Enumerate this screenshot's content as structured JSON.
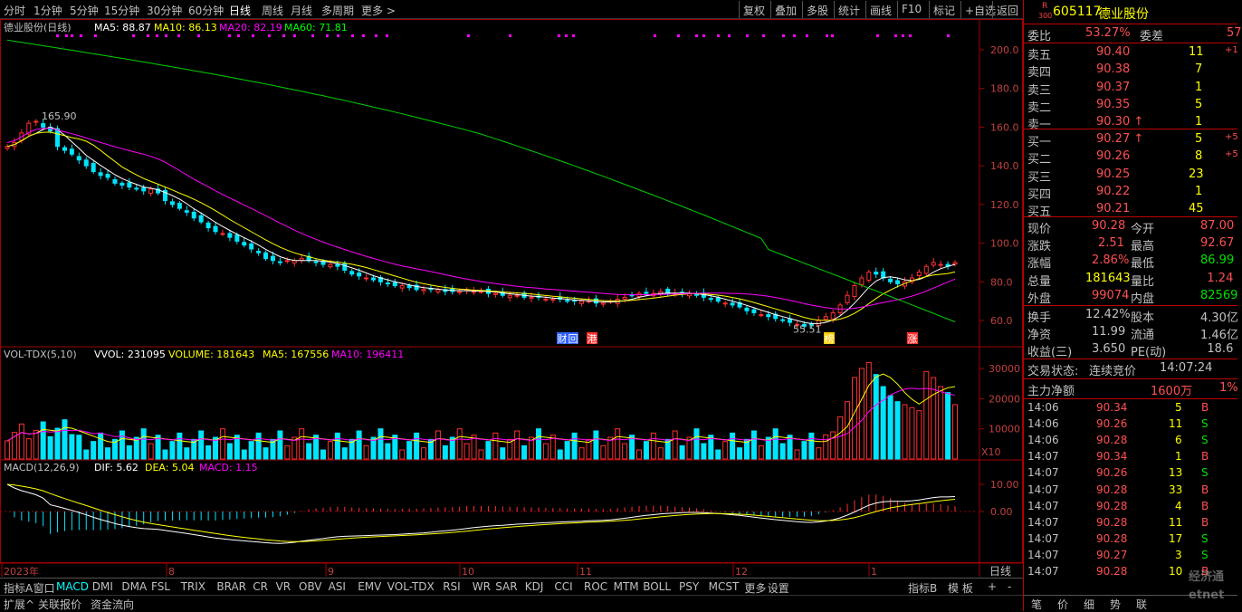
{
  "toolbar": {
    "periods": [
      "分时",
      "1分钟",
      "5分钟",
      "15分钟",
      "30分钟",
      "60分钟",
      "日线",
      "周线",
      "月线",
      "多周期",
      "更多 >"
    ],
    "active": "日线",
    "right": [
      "复权",
      "叠加",
      "多股",
      "统计",
      "画线",
      "F10",
      "标记",
      "+自选",
      "返回"
    ]
  },
  "main_panel": {
    "title": "德业股份(日线)",
    "ma5": "MA5: 88.87",
    "ma10": "MA10: 86.13",
    "ma20": "MA20: 82.19",
    "ma60": "MA60: 71.81",
    "high_label": "165.90",
    "low_label": "55.51",
    "y_ticks": [
      "200.0",
      "180.0",
      "160.0",
      "140.0",
      "120.0",
      "100.0",
      "80.0",
      "60.0"
    ],
    "markers": [
      "财",
      "回",
      "港",
      "榜",
      "涨"
    ]
  },
  "vol_panel": {
    "title": "VOL-TDX(5,10)",
    "vvol": "VVOL: 231095",
    "volume": "VOLUME: 181643",
    "ma5": "MA5: 167556",
    "ma10": "MA10: 196411",
    "y_ticks": [
      "30000",
      "20000",
      "10000"
    ],
    "unit": "X10"
  },
  "macd_panel": {
    "title": "MACD(12,26,9)",
    "dif": "DIF: 5.62",
    "dea": "DEA: 5.04",
    "macd": "MACD: 1.15",
    "y_ticks": [
      "10.00",
      "0.00"
    ]
  },
  "x_axis": {
    "labels": [
      "2023年",
      "8",
      "9",
      "10",
      "11",
      "12",
      "1"
    ],
    "period": "日线"
  },
  "indicator_tabs": [
    "指标A",
    "窗口",
    "MACD",
    "DMI",
    "DMA",
    "FSL",
    "TRIX",
    "BRAR",
    "CR",
    "VR",
    "OBV",
    "ASI",
    "EMV",
    "VOL-TDX",
    "RSI",
    "WR",
    "SAR",
    "KDJ",
    "CCI",
    "ROC",
    "MTM",
    "BOLL",
    "PSY",
    "MCST",
    "更多",
    "设置"
  ],
  "indicator_active": "MACD",
  "indicator_right": [
    "指标B",
    "模 板",
    "+",
    "-"
  ],
  "bottom_tabs": [
    "扩展^",
    "关联报价",
    "资金流向"
  ],
  "quote": {
    "badge_top": "R",
    "badge_bottom": "300",
    "code": "605117",
    "name": "德业股份",
    "wei_bi_label": "委比",
    "wei_bi": "53.27%",
    "wei_cha_label": "委差",
    "wei_cha": "57",
    "sell": [
      {
        "label": "卖五",
        "price": "90.40",
        "vol": "11",
        "chg": "+1"
      },
      {
        "label": "卖四",
        "price": "90.38",
        "vol": "7",
        "chg": ""
      },
      {
        "label": "卖三",
        "price": "90.37",
        "vol": "1",
        "chg": ""
      },
      {
        "label": "卖二",
        "price": "90.35",
        "vol": "5",
        "chg": ""
      },
      {
        "label": "卖一",
        "price": "90.30 ↑",
        "vol": "1",
        "chg": ""
      }
    ],
    "buy": [
      {
        "label": "买一",
        "price": "90.27 ↑",
        "vol": "5",
        "chg": "+5"
      },
      {
        "label": "买二",
        "price": "90.26",
        "vol": "8",
        "chg": "+5"
      },
      {
        "label": "买三",
        "price": "90.25",
        "vol": "23",
        "chg": ""
      },
      {
        "label": "买四",
        "price": "90.22",
        "vol": "1",
        "chg": ""
      },
      {
        "label": "买五",
        "price": "90.21",
        "vol": "45",
        "chg": ""
      }
    ],
    "stats": [
      {
        "l1": "现价",
        "v1": "90.28",
        "l2": "今开",
        "v2": "87.00"
      },
      {
        "l1": "涨跌",
        "v1": "2.51",
        "l2": "最高",
        "v2": "92.67"
      },
      {
        "l1": "涨幅",
        "v1": "2.86%",
        "l2": "最低",
        "v2": "86.99"
      },
      {
        "l1": "总量",
        "v1": "181643",
        "l2": "量比",
        "v2": "1.24"
      },
      {
        "l1": "外盘",
        "v1": "99074",
        "l2": "内盘",
        "v2": "82569"
      }
    ],
    "stats2": [
      {
        "l1": "换手",
        "v1": "12.42%",
        "l2": "股本",
        "v2": "4.30亿"
      },
      {
        "l1": "净资",
        "v1": "11.99",
        "l2": "流通",
        "v2": "1.46亿"
      },
      {
        "l1": "收益(三)",
        "v1": "3.650",
        "l2": "PE(动)",
        "v2": "18.6"
      }
    ],
    "status_label": "交易状态:",
    "status": "连续竞价",
    "status_time": "14:07:24",
    "net_label": "主力净额",
    "net": "1600万",
    "net_extra": "1%",
    "ticks": [
      {
        "t": "14:06",
        "p": "90.34",
        "v": "5",
        "s": "B"
      },
      {
        "t": "14:06",
        "p": "90.26",
        "v": "11",
        "s": "S"
      },
      {
        "t": "14:06",
        "p": "90.28",
        "v": "6",
        "s": "S"
      },
      {
        "t": "14:07",
        "p": "90.34",
        "v": "1",
        "s": "B"
      },
      {
        "t": "14:07",
        "p": "90.26",
        "v": "13",
        "s": "S"
      },
      {
        "t": "14:07",
        "p": "90.28",
        "v": "33",
        "s": "B"
      },
      {
        "t": "14:07",
        "p": "90.28",
        "v": "4",
        "s": "B"
      },
      {
        "t": "14:07",
        "p": "90.28",
        "v": "11",
        "s": "B"
      },
      {
        "t": "14:07",
        "p": "90.28",
        "v": "17",
        "s": "S"
      },
      {
        "t": "14:07",
        "p": "90.27",
        "v": "3",
        "s": "S"
      },
      {
        "t": "14:07",
        "p": "90.28",
        "v": "10",
        "s": "B"
      }
    ],
    "tabs": [
      "笔",
      "价",
      "细",
      "势",
      "联"
    ],
    "watermark": "经济通 etnet"
  },
  "chart_data": {
    "type": "candlestick",
    "series_close": [
      150,
      152,
      157,
      162,
      163,
      160,
      158,
      150,
      148,
      146,
      143,
      140,
      137,
      135,
      134,
      131,
      130,
      129,
      128,
      127,
      128,
      126,
      122,
      120,
      118,
      116,
      113,
      111,
      108,
      106,
      105,
      103,
      101,
      99,
      97,
      95,
      92,
      91,
      90,
      91,
      91,
      92,
      91,
      90,
      89,
      89,
      88,
      86,
      84,
      83,
      82,
      81,
      80,
      79,
      78,
      78,
      77,
      76,
      76,
      76,
      76,
      75,
      75,
      75,
      76,
      75,
      75,
      74,
      74,
      73,
      73,
      73,
      72,
      72,
      72,
      71,
      71,
      71,
      70,
      70,
      70,
      70,
      69,
      69,
      70,
      71,
      72,
      73,
      74,
      74,
      74,
      75,
      74,
      74,
      74,
      74,
      73,
      72,
      71,
      70,
      69,
      68,
      67,
      65,
      64,
      63,
      62,
      61,
      60,
      59,
      58,
      57,
      58,
      60,
      62,
      64,
      68,
      73,
      78,
      82,
      85,
      84,
      82,
      80,
      79,
      80,
      82,
      85,
      88,
      90,
      89,
      88,
      90
    ],
    "ma60_start": 205,
    "ma60_end": 71.81,
    "volume_last": [
      8000,
      9000,
      14000,
      19000,
      27000,
      30000,
      32000,
      28000,
      24000,
      21000,
      19000,
      18000,
      17000,
      16000,
      29000,
      27000,
      24000,
      22000,
      18000
    ]
  }
}
